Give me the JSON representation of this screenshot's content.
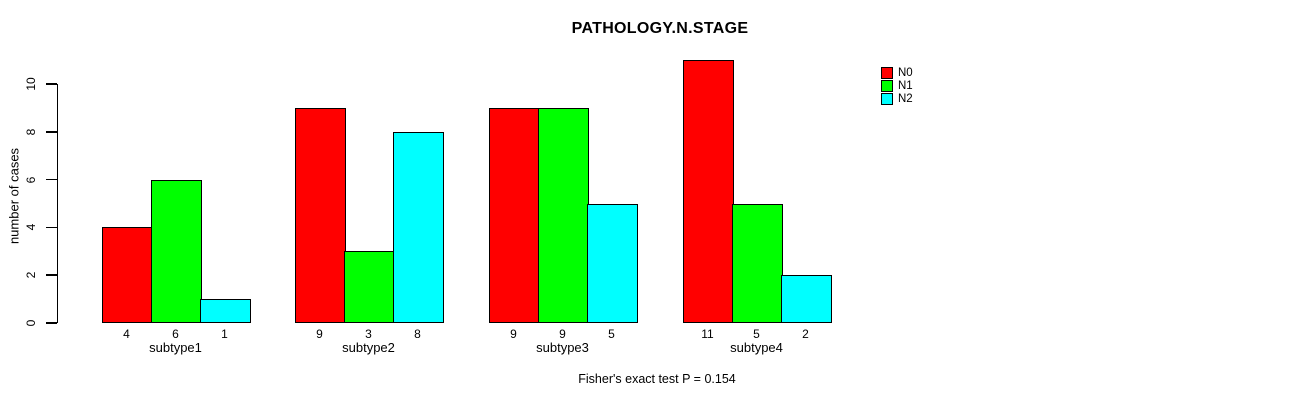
{
  "chart_data": {
    "type": "bar",
    "title": "PATHOLOGY.N.STAGE",
    "ylabel": "number of cases",
    "xlabel": "",
    "categories": [
      "subtype1",
      "subtype2",
      "subtype3",
      "subtype4"
    ],
    "series": [
      {
        "name": "N0",
        "color": "#ff0000",
        "values": [
          4,
          9,
          9,
          11
        ]
      },
      {
        "name": "N1",
        "color": "#00ff00",
        "values": [
          6,
          3,
          9,
          5
        ]
      },
      {
        "name": "N2",
        "color": "#00ffff",
        "values": [
          1,
          8,
          5,
          2
        ]
      }
    ],
    "bar_value_labels_shown": true,
    "yticks": [
      0,
      2,
      4,
      6,
      8,
      10
    ],
    "ylim": [
      0,
      10
    ],
    "grid": false,
    "legend_position": "top-right",
    "bar_border_color": "#000000",
    "background_color": "#ffffff",
    "text_color": "#000000",
    "annotation": "Fisher's exact test P = 0.154"
  }
}
